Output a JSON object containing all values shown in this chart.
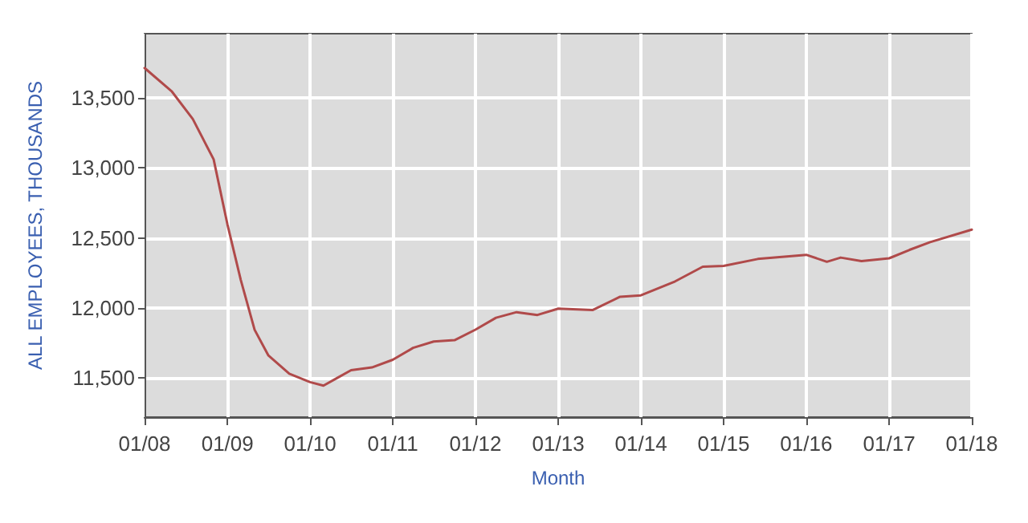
{
  "chart_data": {
    "type": "line",
    "xlabel": "Month",
    "ylabel": "ALL EMPLOYEES, THOUSANDS",
    "x": [
      "2008-01",
      "2008-05",
      "2008-08",
      "2008-11",
      "2009-01",
      "2009-03",
      "2009-05",
      "2009-07",
      "2009-10",
      "2010-01",
      "2010-03",
      "2010-05",
      "2010-07",
      "2010-10",
      "2011-01",
      "2011-04",
      "2011-07",
      "2011-10",
      "2012-01",
      "2012-04",
      "2012-07",
      "2012-10",
      "2013-01",
      "2013-06",
      "2013-10",
      "2014-01",
      "2014-06",
      "2014-10",
      "2015-01",
      "2015-06",
      "2016-01",
      "2016-04",
      "2016-06",
      "2016-09",
      "2017-01",
      "2017-04",
      "2017-07",
      "2018-01"
    ],
    "series": [
      {
        "color": "#b04a4a",
        "values": [
          13715,
          13546,
          13350,
          13062,
          12597,
          12200,
          11844,
          11660,
          11530,
          11470,
          11445,
          11500,
          11555,
          11575,
          11630,
          11715,
          11760,
          11770,
          11845,
          11930,
          11970,
          11950,
          11995,
          11985,
          12080,
          12090,
          12190,
          12295,
          12300,
          12350,
          12380,
          12330,
          12360,
          12335,
          12355,
          12415,
          12470,
          12560
        ]
      }
    ],
    "xlim": [
      "2008-01",
      "2018-01"
    ],
    "xticks": [
      {
        "value": "2008-01",
        "label": "01/08"
      },
      {
        "value": "2009-01",
        "label": "01/09"
      },
      {
        "value": "2010-01",
        "label": "01/10"
      },
      {
        "value": "2011-01",
        "label": "01/11"
      },
      {
        "value": "2012-01",
        "label": "01/12"
      },
      {
        "value": "2013-01",
        "label": "01/13"
      },
      {
        "value": "2014-01",
        "label": "01/14"
      },
      {
        "value": "2015-01",
        "label": "01/15"
      },
      {
        "value": "2016-01",
        "label": "01/16"
      },
      {
        "value": "2017-01",
        "label": "01/17"
      },
      {
        "value": "2018-01",
        "label": "01/18"
      }
    ],
    "ylim": [
      11220,
      13960
    ],
    "yticks": [
      {
        "value": 11500,
        "label": "11,500"
      },
      {
        "value": 12000,
        "label": "12,000"
      },
      {
        "value": 12500,
        "label": "12,500"
      },
      {
        "value": 13000,
        "label": "13,000"
      },
      {
        "value": 13500,
        "label": "13,500"
      }
    ],
    "grid": true,
    "marker": "none",
    "line_style": "solid"
  }
}
